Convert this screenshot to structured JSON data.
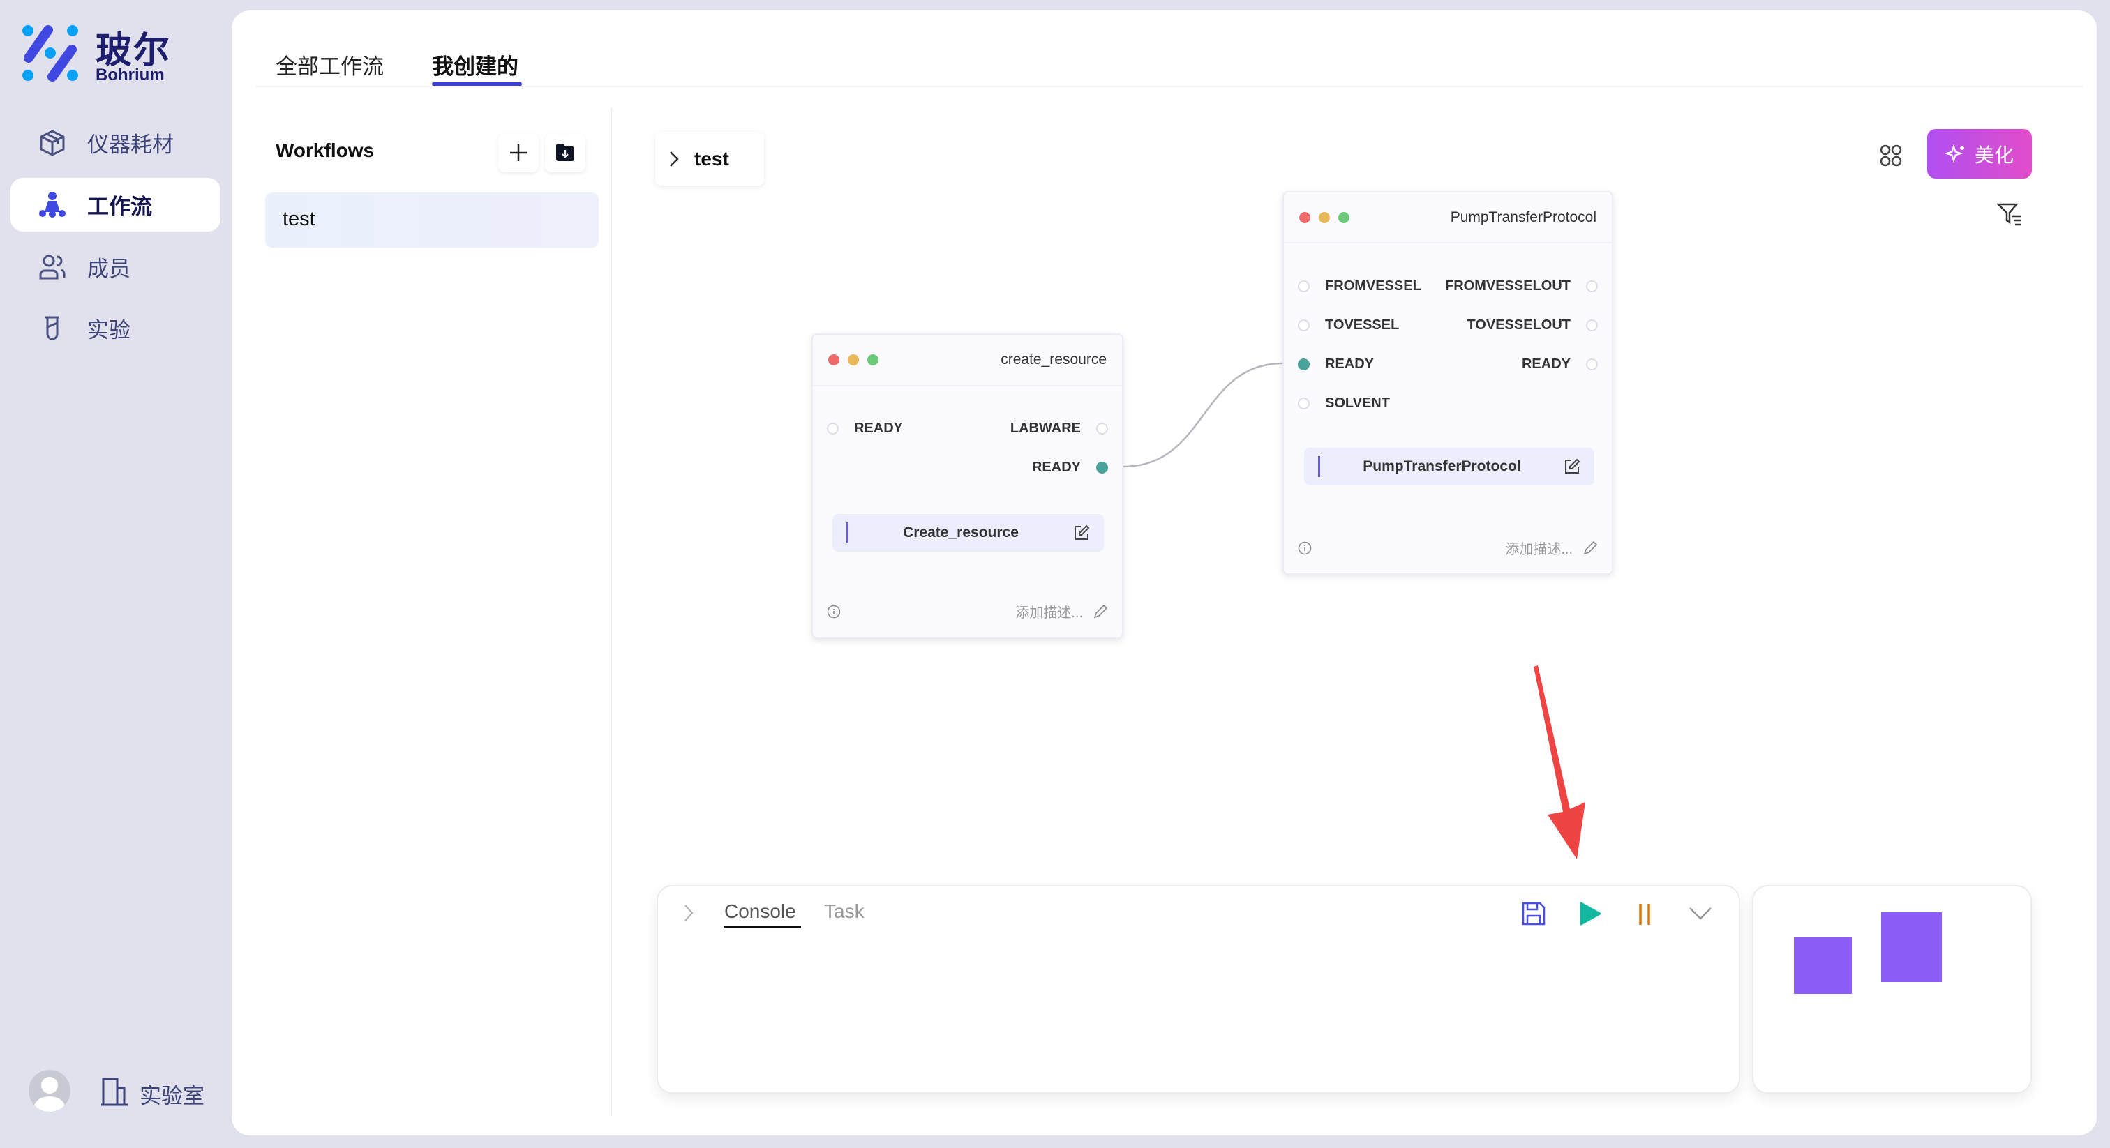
{
  "brand": {
    "name_cn": "玻尔",
    "name_en": "Bohrium"
  },
  "sidebar": {
    "items": [
      {
        "label": "仪器耗材",
        "icon": "cube-icon"
      },
      {
        "label": "工作流",
        "icon": "workflow-icon",
        "active": true
      },
      {
        "label": "成员",
        "icon": "users-icon"
      },
      {
        "label": "实验",
        "icon": "test-tube-icon"
      }
    ],
    "footer": {
      "lab_label": "实验室"
    }
  },
  "tabs": [
    {
      "label": "全部工作流"
    },
    {
      "label": "我创建的",
      "active": true
    }
  ],
  "workflows": {
    "heading": "Workflows",
    "items": [
      "test"
    ]
  },
  "canvas": {
    "breadcrumb": "test",
    "beautify_label": "美化",
    "accent": "#3b3fe0",
    "nodes": [
      {
        "title": "create_resource",
        "inputs": [
          "READY"
        ],
        "outputs": [
          "LABWARE",
          "READY"
        ],
        "name": "Create_resource",
        "description_placeholder": "添加描述..."
      },
      {
        "title": "PumpTransferProtocol",
        "inputs": [
          "FROMVESSEL",
          "TOVESSEL",
          "READY",
          "SOLVENT"
        ],
        "outputs": [
          "FROMVESSELOUT",
          "TOVESSELOUT",
          "READY"
        ],
        "name": "PumpTransferProtocol",
        "description_placeholder": "添加描述..."
      }
    ]
  },
  "console": {
    "tabs": [
      "Console",
      "Task"
    ],
    "active_tab": "Console"
  }
}
